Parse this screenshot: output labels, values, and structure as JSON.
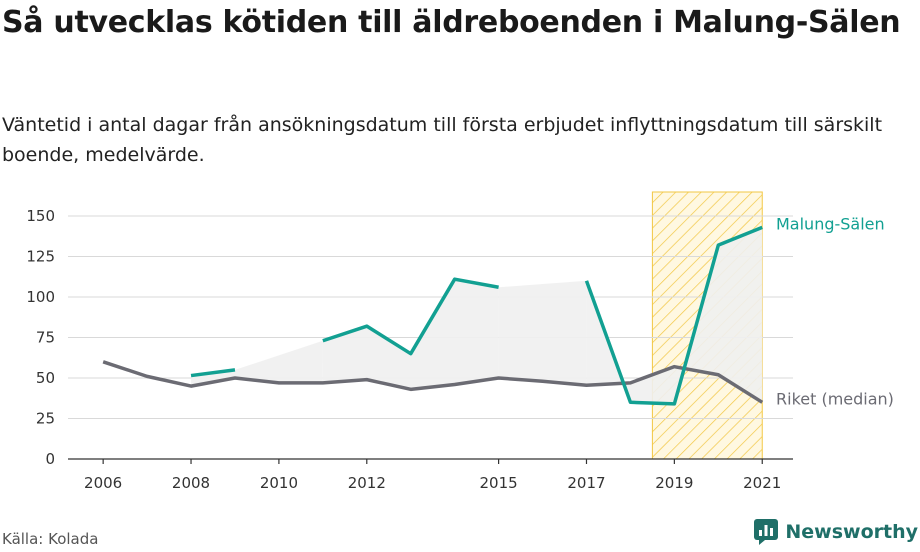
{
  "header": {
    "title": "Så utvecklas kötiden till äldreboenden i Malung-Sälen",
    "subtitle": "Väntetid i antal dagar från ansökningsdatum till första erbjudet inflyttningsdatum till särskilt boende, medelvärde."
  },
  "footer": {
    "source": "Källa: Kolada",
    "brand": "Newsworthy",
    "brand_icon": "newsworthy-logo-icon"
  },
  "colors": {
    "malung": "#12a092",
    "riket": "#6b6b73",
    "band": "#efefef",
    "highlight": "#f2c744",
    "grid": "#d9d9d9",
    "axis": "#333333",
    "text": "#1a1a1a",
    "muted": "#555555"
  },
  "chart_data": {
    "type": "line",
    "x_tick_labels": [
      "2006",
      "2008",
      "2010",
      "2012",
      "2015",
      "2017",
      "2019",
      "2021"
    ],
    "y_tick_labels": [
      "0",
      "25",
      "50",
      "75",
      "100",
      "125",
      "150"
    ],
    "ylim": [
      0,
      150
    ],
    "xlim": [
      2005.2,
      2021.7
    ],
    "grid": "horizontal",
    "legend": "direct labels at line ends",
    "highlight_region": {
      "from": 2018.5,
      "to": 2021,
      "style": "diagonal hatch"
    },
    "series": [
      {
        "name": "Malung-Sälen",
        "color_key": "malung",
        "x": [
          2006,
          2007,
          2008,
          2009,
          2010,
          2011,
          2012,
          2013,
          2014,
          2015,
          2016,
          2017,
          2018,
          2019,
          2020,
          2021
        ],
        "values": [
          null,
          null,
          51.5,
          55,
          null,
          73,
          82,
          65,
          111,
          106,
          null,
          110,
          35,
          34,
          132,
          143
        ]
      },
      {
        "name": "Riket (median)",
        "color_key": "riket",
        "x": [
          2006,
          2007,
          2008,
          2009,
          2010,
          2011,
          2012,
          2013,
          2014,
          2015,
          2016,
          2017,
          2018,
          2019,
          2020,
          2021
        ],
        "values": [
          60,
          51,
          45,
          50,
          47,
          47,
          49,
          43,
          46,
          50,
          48,
          45.5,
          47,
          57,
          52,
          35
        ]
      }
    ]
  }
}
